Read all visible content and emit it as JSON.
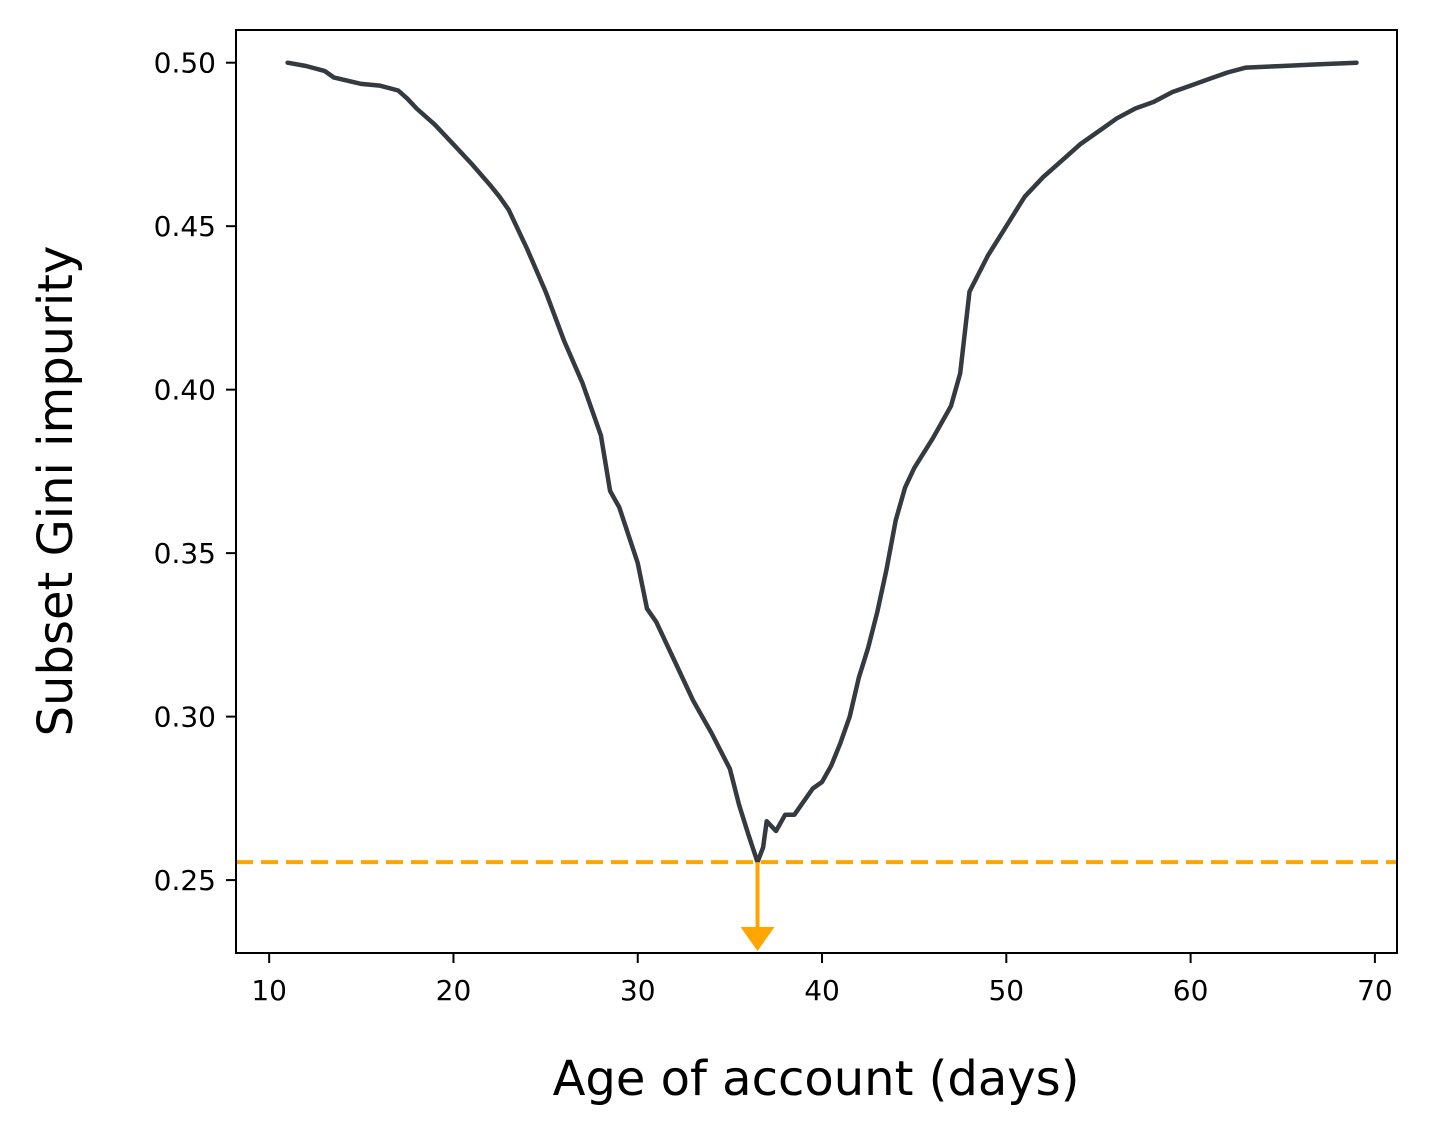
{
  "chart_data": {
    "type": "line",
    "title": "",
    "xlabel": "Age of account (days)",
    "ylabel": "Subset Gini impurity",
    "xlim": [
      8.2,
      71.2
    ],
    "ylim": [
      0.2277,
      0.51
    ],
    "xticks": [
      10,
      20,
      30,
      40,
      50,
      60,
      70
    ],
    "yticks": [
      0.25,
      0.3,
      0.35,
      0.4,
      0.45,
      0.5
    ],
    "x_tick_labels": [
      "10",
      "20",
      "30",
      "40",
      "50",
      "60",
      "70"
    ],
    "y_tick_labels": [
      "0.25",
      "0.30",
      "0.35",
      "0.40",
      "0.45",
      "0.50"
    ],
    "grid": false,
    "legend": "none",
    "series": [
      {
        "color": "#343a40",
        "x": [
          11,
          12,
          13,
          13.5,
          15,
          16,
          17,
          17.5,
          18,
          19,
          20,
          21,
          22,
          22.5,
          23,
          24,
          25,
          26,
          27,
          28,
          28.5,
          29,
          30,
          30.5,
          31,
          31.5,
          32,
          33,
          33.5,
          34,
          35,
          35.5,
          36,
          36.5,
          36.8,
          37,
          37.5,
          38,
          38.5,
          39,
          39.5,
          40,
          40.5,
          41,
          41.5,
          42,
          42.5,
          43,
          43.5,
          44,
          44.5,
          45,
          46,
          47,
          47.5,
          48,
          49,
          50,
          51,
          52,
          53,
          54,
          55,
          56,
          57,
          58,
          59,
          60,
          61,
          62,
          63,
          65,
          67,
          69
        ],
        "y": [
          0.5,
          0.499,
          0.4975,
          0.4955,
          0.4935,
          0.493,
          0.4915,
          0.489,
          0.486,
          0.481,
          0.475,
          0.469,
          0.4625,
          0.459,
          0.455,
          0.443,
          0.43,
          0.415,
          0.402,
          0.386,
          0.369,
          0.364,
          0.347,
          0.333,
          0.329,
          0.323,
          0.317,
          0.305,
          0.3,
          0.295,
          0.284,
          0.273,
          0.264,
          0.2555,
          0.26,
          0.268,
          0.265,
          0.27,
          0.27,
          0.274,
          0.278,
          0.28,
          0.285,
          0.292,
          0.3,
          0.312,
          0.321,
          0.332,
          0.345,
          0.36,
          0.37,
          0.376,
          0.385,
          0.395,
          0.405,
          0.43,
          0.441,
          0.45,
          0.459,
          0.465,
          0.47,
          0.475,
          0.479,
          0.483,
          0.486,
          0.488,
          0.491,
          0.493,
          0.495,
          0.497,
          0.4985,
          0.499,
          0.4995,
          0.5
        ]
      }
    ],
    "annotations": [
      {
        "type": "hline",
        "y": 0.2555,
        "color": "#ffa500",
        "style": "dashed"
      },
      {
        "type": "arrow",
        "x": 36.5,
        "y_from": 0.2555,
        "y_to": 0.2277,
        "color": "#ffa500"
      }
    ]
  }
}
